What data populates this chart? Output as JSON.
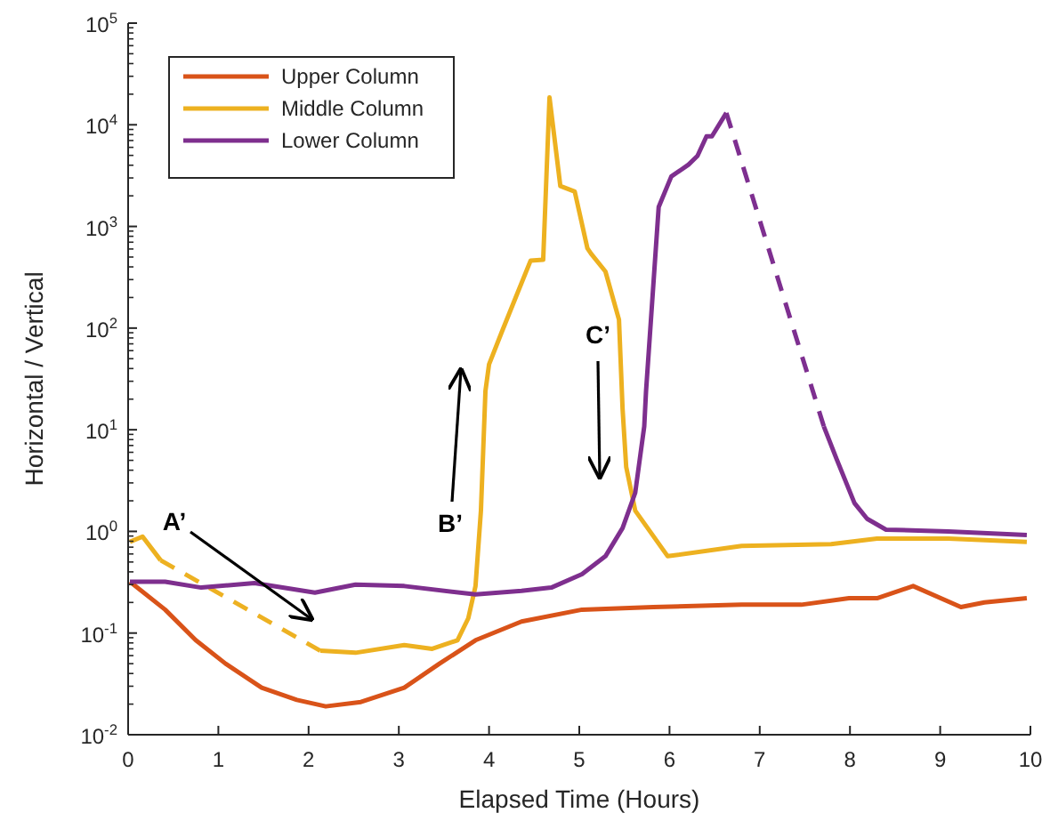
{
  "chart_data": {
    "type": "line",
    "xlabel": "Elapsed Time (Hours)",
    "ylabel": "Horizontal / Vertical",
    "log": "y",
    "grid": false,
    "legend": "top left",
    "xlim": [
      0,
      10
    ],
    "xticks": [
      0,
      1,
      2,
      3,
      4,
      5,
      6,
      7,
      8,
      9,
      10
    ],
    "ylim": [
      0.01,
      100000
    ],
    "yticks": [
      {
        "value": 0.01,
        "label": "10$^{-2}$"
      },
      {
        "value": 0.1,
        "label": "10$^{-1}$"
      },
      {
        "value": 1,
        "label": "10$^{0}$"
      },
      {
        "value": 10,
        "label": "10$^{1}$"
      },
      {
        "value": 100,
        "label": "10$^{2}$"
      },
      {
        "value": 1000,
        "label": "10$^{3}$"
      },
      {
        "value": 10000,
        "label": "10$^{4}$"
      },
      {
        "value": 100000,
        "label": "10$^{5}$"
      }
    ],
    "series": [
      {
        "name": "Upper Column",
        "color": "#d95319",
        "line_style": "solid",
        "x": [
          0.02,
          0.41,
          0.75,
          1.08,
          1.48,
          1.87,
          2.19,
          2.58,
          3.06,
          3.45,
          3.85,
          4.36,
          5.03,
          5.82,
          6.8,
          7.46,
          7.99,
          8.3,
          8.7,
          9.23,
          9.49,
          9.96
        ],
        "values": [
          0.32,
          0.17,
          0.085,
          0.05,
          0.029,
          0.022,
          0.019,
          0.021,
          0.029,
          0.05,
          0.085,
          0.13,
          0.17,
          0.18,
          0.19,
          0.19,
          0.22,
          0.22,
          0.29,
          0.18,
          0.2,
          0.22
        ]
      },
      {
        "name": "Middle Column",
        "color": "#edb120",
        "line_style": "solid",
        "x": [
          0.02,
          0.16,
          0.36,
          1.0,
          2.13,
          2.52,
          3.06,
          3.37,
          3.65,
          3.77,
          3.85,
          3.91,
          3.96,
          4.0,
          4.14,
          4.3,
          4.46,
          4.6,
          4.67,
          4.79,
          4.95,
          5.09,
          5.13,
          5.29,
          5.44,
          5.48,
          5.52,
          5.62,
          5.98,
          6.8,
          7.79,
          8.3,
          9.09,
          9.96
        ],
        "values": [
          0.79,
          0.89,
          0.52,
          null,
          0.067,
          0.064,
          0.076,
          0.07,
          0.085,
          0.14,
          0.29,
          1.6,
          24,
          44,
          91,
          205,
          460,
          470,
          18600,
          2500,
          2200,
          610,
          540,
          360,
          121,
          16,
          4.3,
          1.6,
          0.57,
          0.72,
          0.75,
          0.85,
          0.85,
          0.79
        ]
      },
      {
        "color": "#edb122",
        "line_style": "dashed",
        "x": [
          0.36,
          2.13
        ],
        "values": [
          0.52,
          0.067
        ]
      },
      {
        "name": "Lower Column",
        "color": "#7e2f8e",
        "line_style": "solid",
        "x": [
          0.02,
          0.41,
          0.81,
          1.4,
          2.07,
          2.52,
          3.06,
          3.85,
          4.36,
          4.69,
          5.03,
          5.29,
          5.48,
          5.62,
          5.72,
          5.74,
          5.88,
          6.02,
          6.21,
          6.31,
          6.41,
          6.47,
          6.63,
          7.0,
          7.71,
          7.85,
          8.05,
          8.19,
          8.4,
          9.09,
          9.96
        ],
        "values": [
          0.32,
          0.32,
          0.28,
          0.31,
          0.25,
          0.3,
          0.29,
          0.24,
          0.26,
          0.28,
          0.38,
          0.57,
          1.08,
          2.4,
          10.8,
          24,
          1550,
          3100,
          4050,
          4950,
          7700,
          7700,
          13100,
          null,
          10.8,
          5.2,
          1.9,
          1.33,
          1.04,
          1.0,
          0.92
        ]
      },
      {
        "color": "#7e2f90",
        "line_style": "dashed",
        "x": [
          6.63,
          7.71
        ],
        "values": [
          13100,
          10.8
        ]
      }
    ],
    "annotations": [
      "A’",
      "B’",
      "C’"
    ]
  }
}
